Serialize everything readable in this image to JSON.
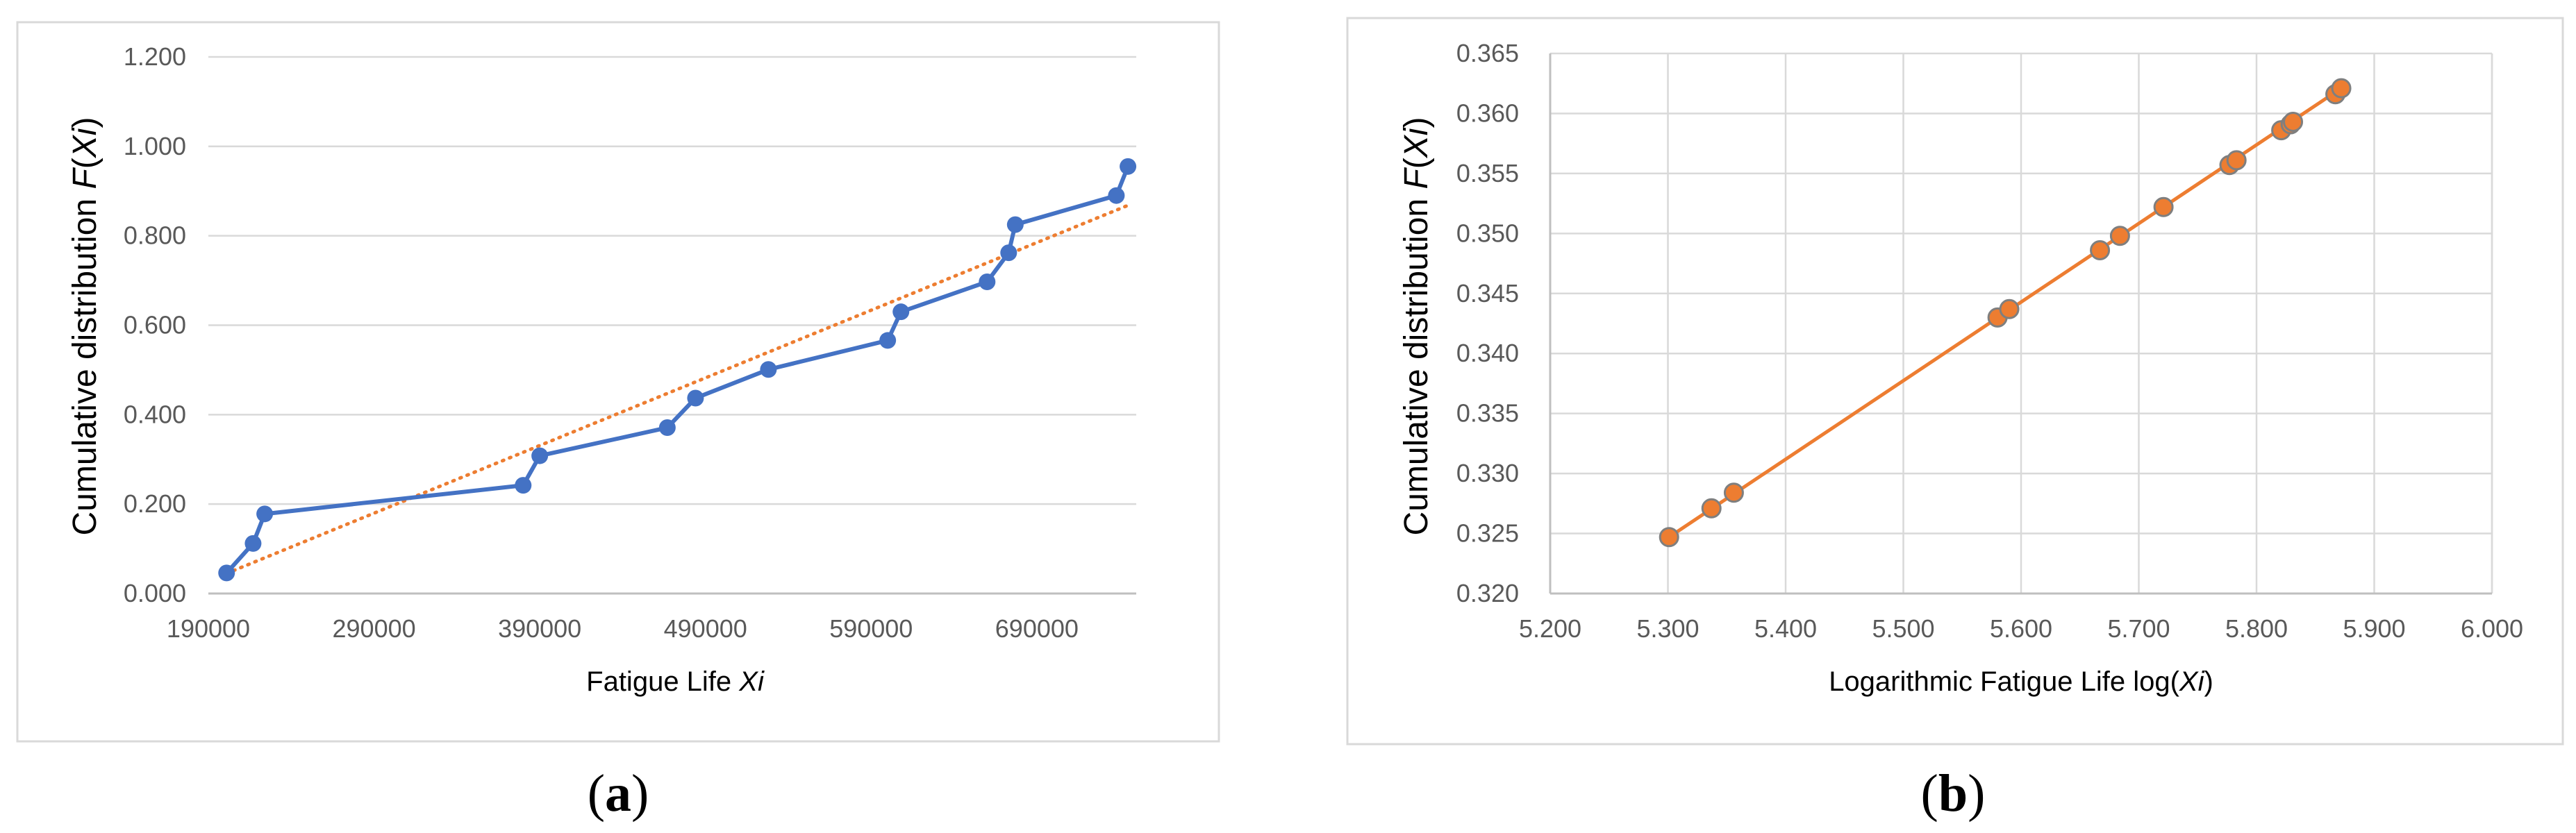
{
  "panels": [
    {
      "label": "a"
    },
    {
      "label": "b"
    }
  ],
  "chart_data": [
    {
      "type": "line",
      "panel": "a",
      "xlabel": {
        "prefix": "Fatigue Life ",
        "italic": "Xi",
        "suffix": ""
      },
      "ylabel": {
        "prefix": "Cumulative distribution ",
        "f": "F",
        "open": "(",
        "italic": "Xi",
        "close": ")"
      },
      "xlim": [
        190000,
        750000
      ],
      "ylim": [
        0,
        1.2
      ],
      "xticks": [
        "190000",
        "290000",
        "390000",
        "490000",
        "590000",
        "690000"
      ],
      "yticks": [
        "0.000",
        "0.200",
        "0.400",
        "0.600",
        "0.800",
        "1.000",
        "1.200"
      ],
      "grid": "horizontal",
      "series": [
        {
          "color": "#4472c4",
          "marker": "circle",
          "x": [
            201000,
            217000,
            224000,
            380000,
            390000,
            467000,
            484000,
            528000,
            600000,
            608000,
            660000,
            673000,
            677000,
            738000,
            745000
          ],
          "y": [
            0.046,
            0.112,
            0.178,
            0.242,
            0.308,
            0.371,
            0.437,
            0.501,
            0.566,
            0.63,
            0.697,
            0.762,
            0.825,
            0.89,
            0.955
          ]
        }
      ],
      "trendline": {
        "type": "linear",
        "style": "dotted",
        "color": "#ed7d31",
        "x": [
          201000,
          745000
        ],
        "y": [
          0.045,
          0.868
        ]
      }
    },
    {
      "type": "scatter",
      "panel": "b",
      "xlabel": {
        "prefix": "Logarithmic Fatigue Life  log(",
        "italic": "Xi",
        "suffix": ")"
      },
      "ylabel": {
        "prefix": "Cumulative distribution ",
        "f": "F",
        "open": "(",
        "italic": "Xi",
        "close": ")"
      },
      "xlim": [
        5.2,
        6.0
      ],
      "ylim": [
        0.32,
        0.365
      ],
      "xticks": [
        "5.200",
        "5.300",
        "5.400",
        "5.500",
        "5.600",
        "5.700",
        "5.800",
        "5.900",
        "6.000"
      ],
      "yticks": [
        "0.320",
        "0.325",
        "0.330",
        "0.335",
        "0.340",
        "0.345",
        "0.350",
        "0.355",
        "0.360",
        "0.365"
      ],
      "grid": "both",
      "series": [
        {
          "color": "#ed7d31",
          "marker": "circle",
          "x": [
            5.301,
            5.337,
            5.356,
            5.58,
            5.59,
            5.667,
            5.684,
            5.721,
            5.777,
            5.783,
            5.821,
            5.829,
            5.831,
            5.867,
            5.872
          ],
          "y": [
            0.3247,
            0.3271,
            0.3284,
            0.343,
            0.3437,
            0.3486,
            0.3498,
            0.3522,
            0.3557,
            0.3561,
            0.3586,
            0.3591,
            0.3593,
            0.3616,
            0.3621
          ]
        }
      ],
      "trendline": {
        "type": "linear",
        "style": "solid",
        "color": "#ed7d31",
        "x": [
          5.301,
          5.872
        ],
        "y": [
          0.3247,
          0.3621
        ]
      }
    }
  ]
}
